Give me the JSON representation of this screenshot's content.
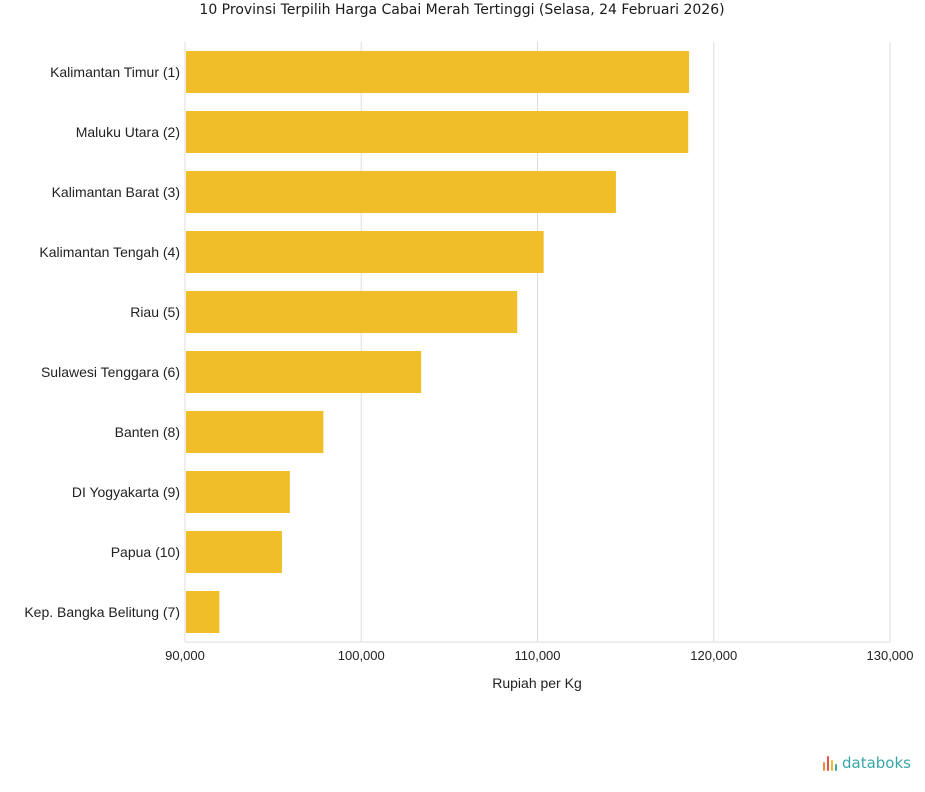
{
  "chart_data": {
    "type": "bar",
    "orientation": "horizontal",
    "title": "10 Provinsi Terpilih Harga Cabai Merah Tertinggi (Selasa, 24 Februari 2026)",
    "xlabel": "Rupiah per Kg",
    "ylabel": "",
    "xlim": [
      90000,
      130000
    ],
    "xticks": [
      90000,
      100000,
      110000,
      120000,
      130000
    ],
    "xtick_labels": [
      "90,000",
      "100,000",
      "110,000",
      "120,000",
      "130,000"
    ],
    "grid": true,
    "categories": [
      "Kalimantan Timur (1)",
      "Maluku Utara (2)",
      "Kalimantan Barat (3)",
      "Kalimantan Tengah (4)",
      "Riau (5)",
      "Sulawesi Tenggara (6)",
      "Banten (8)",
      "DI Yogyakarta (9)",
      "Papua (10)",
      "Kep. Bangka Belitung (7)"
    ],
    "values": [
      118600,
      118550,
      114450,
      110350,
      108850,
      103400,
      97850,
      95950,
      95500,
      91950
    ],
    "bar_color": "#f0be28"
  },
  "brand": {
    "name": "databoks",
    "color": "#3aa6a6",
    "icon": "databoks-logo-icon"
  }
}
